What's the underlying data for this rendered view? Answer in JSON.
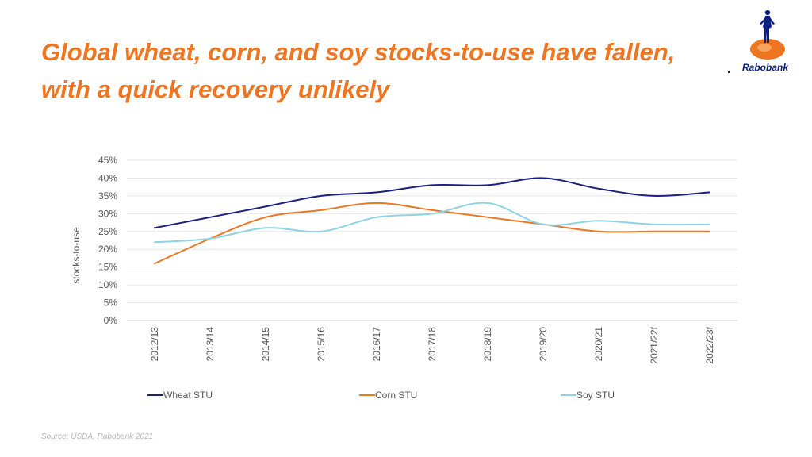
{
  "headline": {
    "line1": "Global wheat, corn, and soy stocks-to-use have fallen,",
    "line2": "with a quick recovery unlikely"
  },
  "brand": {
    "name": "Rabobank",
    "color": "#0d1f80",
    "accent": "#ee7623"
  },
  "source": "Source: USDA, Rabobank 2021",
  "chart_data": {
    "type": "line",
    "title": "",
    "xlabel": "",
    "ylabel": "stocks-to-use",
    "ylim": [
      0,
      45
    ],
    "yticks": [
      0,
      5,
      10,
      15,
      20,
      25,
      30,
      35,
      40,
      45
    ],
    "ytick_labels": [
      "0%",
      "5%",
      "10%",
      "15%",
      "20%",
      "25%",
      "30%",
      "35%",
      "40%",
      "45%"
    ],
    "grid": true,
    "legend_position": "bottom",
    "categories": [
      "2012/13",
      "2013/14",
      "2014/15",
      "2015/16",
      "2016/17",
      "2017/18",
      "2018/19",
      "2019/20",
      "2020/21",
      "2021/22f",
      "2022/23f"
    ],
    "series": [
      {
        "name": "Wheat STU",
        "color": "#1a1f80",
        "values": [
          26,
          29,
          32,
          35,
          36,
          38,
          38,
          40,
          37,
          35,
          36
        ]
      },
      {
        "name": "Corn STU",
        "color": "#ee7623",
        "values": [
          16,
          23,
          29,
          31,
          33,
          31,
          29,
          27,
          25,
          25,
          25
        ]
      },
      {
        "name": "Soy STU",
        "color": "#8fd3e2",
        "values": [
          22,
          23,
          26,
          25,
          29,
          30,
          33,
          27,
          28,
          27,
          27
        ]
      }
    ]
  }
}
